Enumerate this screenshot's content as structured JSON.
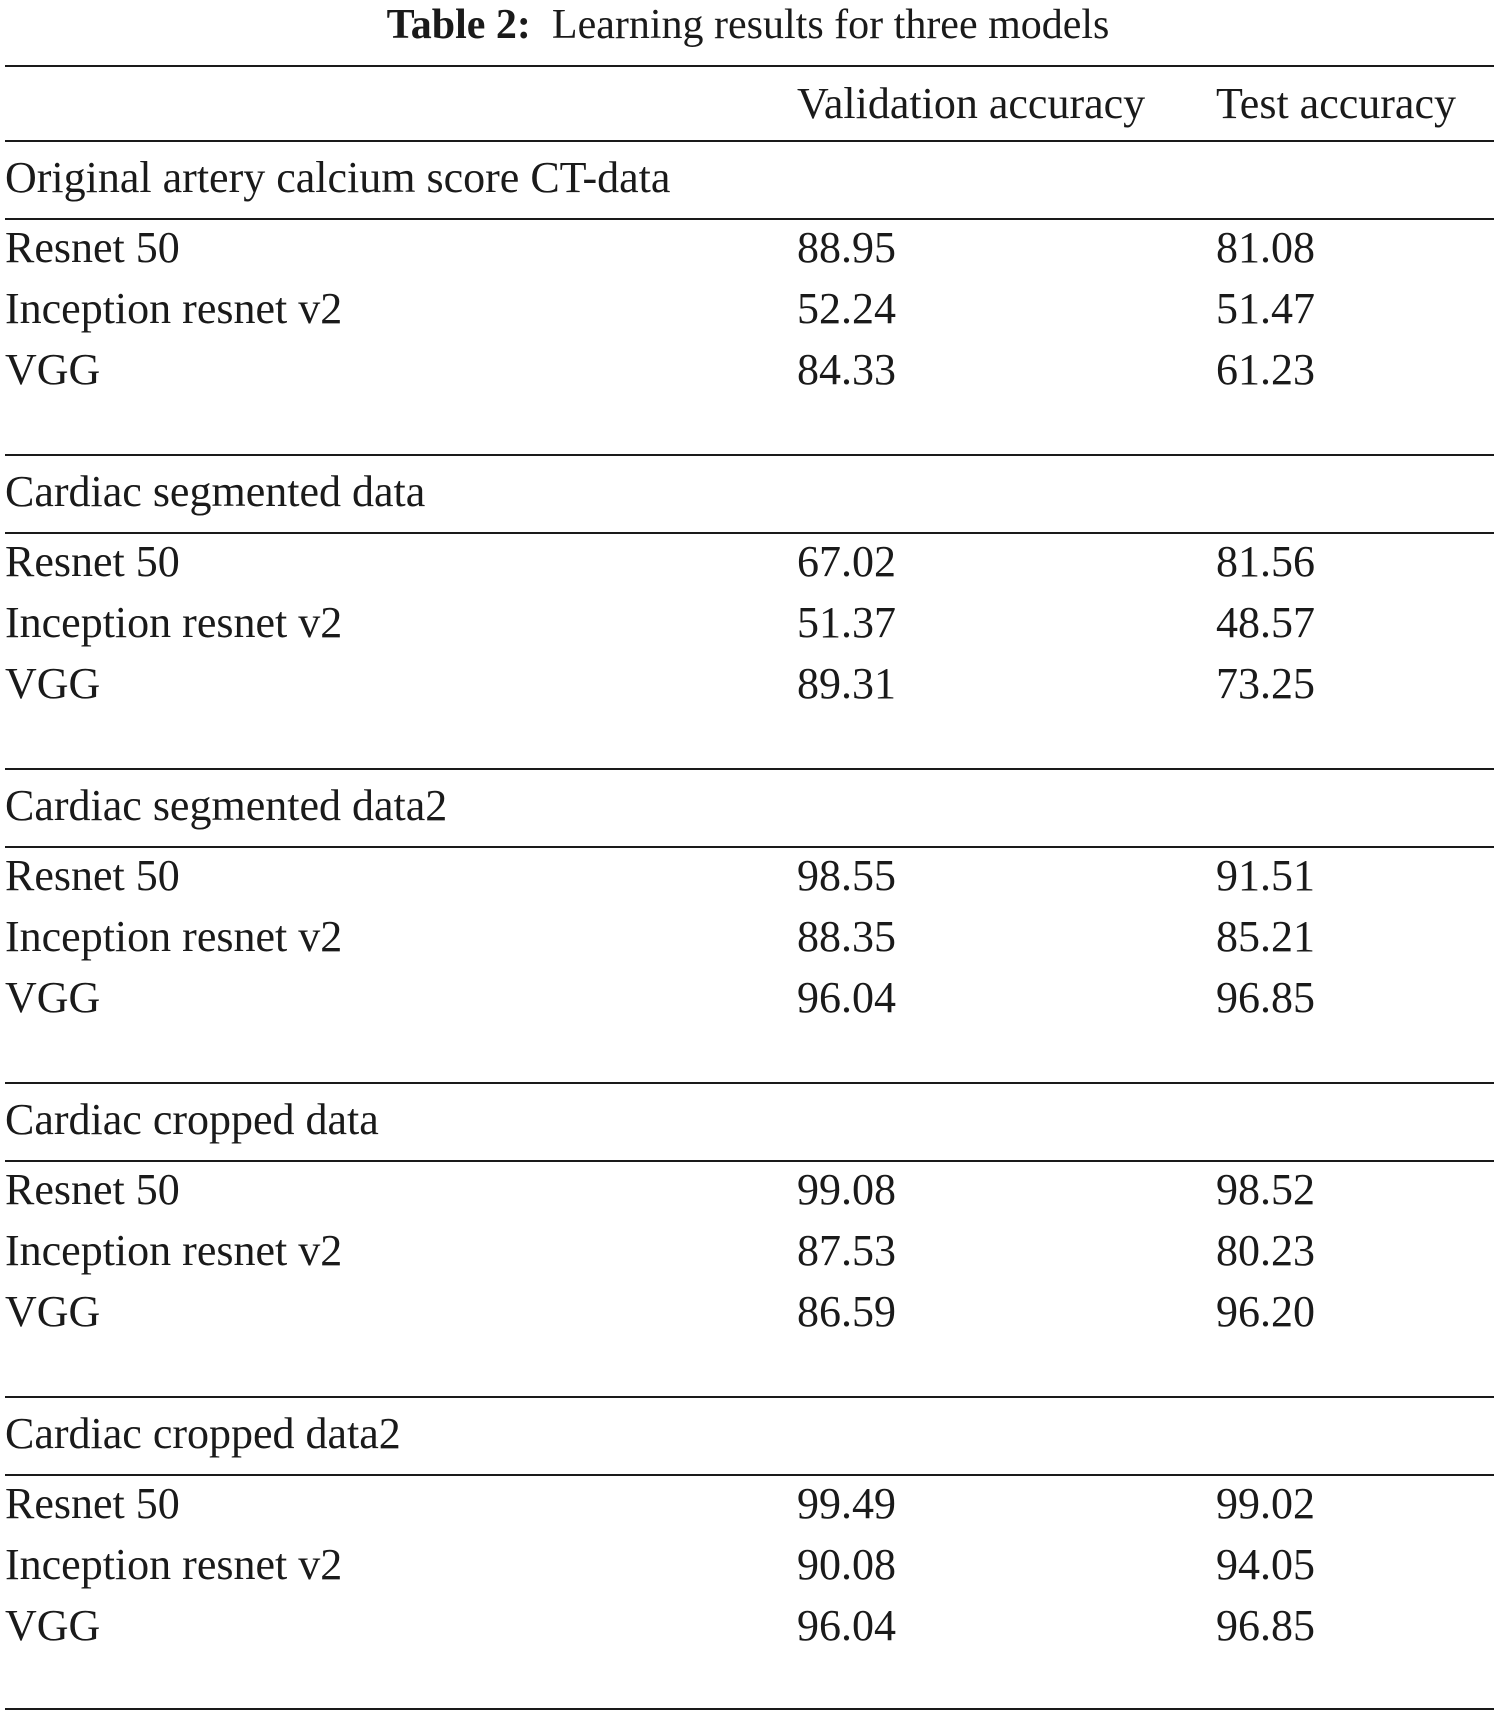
{
  "caption": {
    "label": "Table 2:",
    "text": "Learning results for three models"
  },
  "columns": {
    "name": "",
    "validation": "Validation accuracy",
    "test": "Test accuracy"
  },
  "sections": [
    {
      "title": "Original artery calcium score CT-data",
      "rows": [
        {
          "model": "Resnet 50",
          "validation": "88.95",
          "test": "81.08"
        },
        {
          "model": "Inception resnet v2",
          "validation": "52.24",
          "test": "51.47"
        },
        {
          "model": "VGG",
          "validation": "84.33",
          "test": "61.23"
        }
      ]
    },
    {
      "title": "Cardiac segmented data",
      "rows": [
        {
          "model": "Resnet 50",
          "validation": "67.02",
          "test": "81.56"
        },
        {
          "model": "Inception resnet v2",
          "validation": "51.37",
          "test": "48.57"
        },
        {
          "model": "VGG",
          "validation": "89.31",
          "test": "73.25"
        }
      ]
    },
    {
      "title": "Cardiac segmented data2",
      "rows": [
        {
          "model": "Resnet 50",
          "validation": "98.55",
          "test": "91.51"
        },
        {
          "model": "Inception resnet v2",
          "validation": "88.35",
          "test": "85.21"
        },
        {
          "model": "VGG",
          "validation": "96.04",
          "test": "96.85"
        }
      ]
    },
    {
      "title": "Cardiac cropped data",
      "rows": [
        {
          "model": "Resnet 50",
          "validation": "99.08",
          "test": "98.52"
        },
        {
          "model": "Inception resnet v2",
          "validation": "87.53",
          "test": "80.23"
        },
        {
          "model": "VGG",
          "validation": "86.59",
          "test": "96.20"
        }
      ]
    },
    {
      "title": "Cardiac cropped data2",
      "rows": [
        {
          "model": "Resnet 50",
          "validation": "99.49",
          "test": "99.02"
        },
        {
          "model": "Inception resnet v2",
          "validation": "90.08",
          "test": "94.05"
        },
        {
          "model": "VGG",
          "validation": "96.04",
          "test": "96.85"
        }
      ]
    }
  ]
}
